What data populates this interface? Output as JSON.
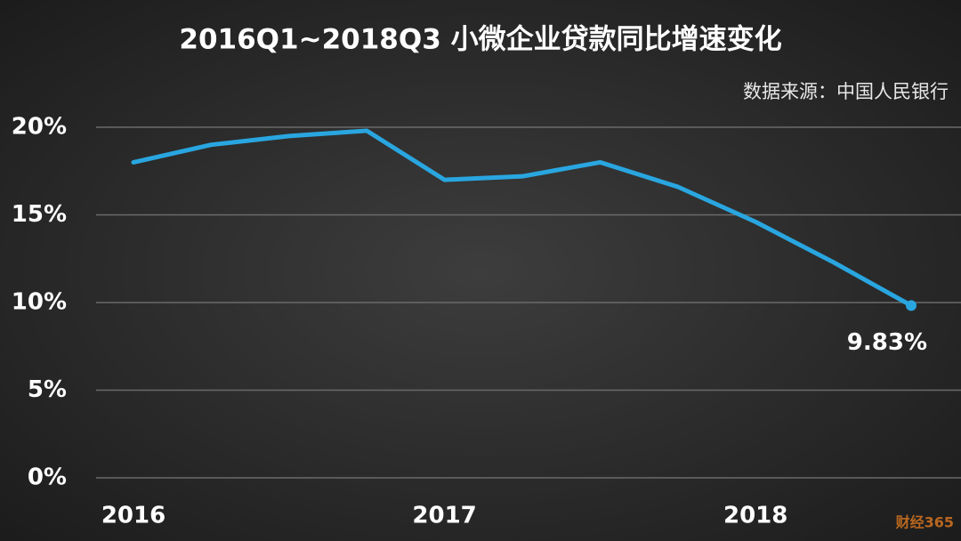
{
  "chart_data": {
    "type": "line",
    "title": "2016Q1~2018Q3  小微企业贷款同比增速变化",
    "source": "数据来源：中国人民银行",
    "categories": [
      "2016",
      null,
      null,
      null,
      "2017",
      null,
      null,
      null,
      "2018",
      null,
      null
    ],
    "series": [
      {
        "name": "小微企业贷款同比增速",
        "color": "#29a6e0",
        "values": [
          18.0,
          19.0,
          19.5,
          19.8,
          17.0,
          17.2,
          18.0,
          16.6,
          14.6,
          12.3,
          9.83
        ],
        "value_labels": [
          null,
          null,
          null,
          null,
          null,
          null,
          null,
          null,
          null,
          null,
          "9.83%"
        ]
      }
    ],
    "ylim": [
      0,
      20
    ],
    "yticks": [
      {
        "value": 0,
        "label": "0%"
      },
      {
        "value": 5,
        "label": "5%"
      },
      {
        "value": 10,
        "label": "10%"
      },
      {
        "value": 15,
        "label": "15%"
      },
      {
        "value": 20,
        "label": "20%"
      }
    ],
    "grid": true,
    "legend": false,
    "watermark": "财经365"
  }
}
